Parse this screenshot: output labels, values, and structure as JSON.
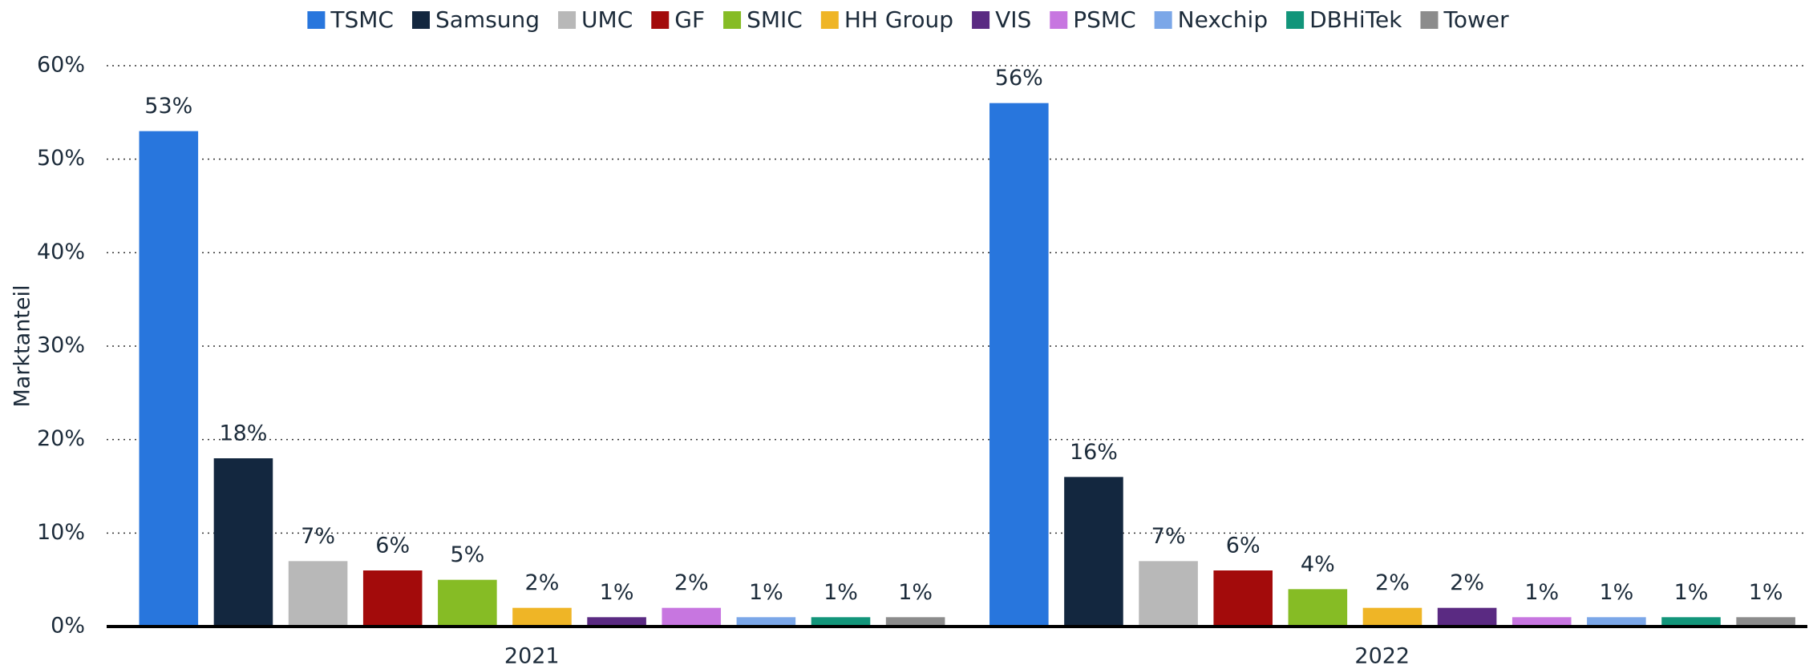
{
  "chart_data": {
    "type": "bar",
    "y_label": "Marktanteil",
    "categories": [
      "2021",
      "2022"
    ],
    "series": [
      {
        "name": "TSMC",
        "color": "#2876dd",
        "values": [
          53,
          56
        ],
        "value_labels": [
          "53%",
          "56%"
        ]
      },
      {
        "name": "Samsung",
        "color": "#13273f",
        "values": [
          18,
          16
        ],
        "value_labels": [
          "18%",
          "16%"
        ]
      },
      {
        "name": "UMC",
        "color": "#b8b8b8",
        "values": [
          7,
          7
        ],
        "value_labels": [
          "7%",
          "7%"
        ]
      },
      {
        "name": "GF",
        "color": "#a30b0b",
        "values": [
          6,
          6
        ],
        "value_labels": [
          "6%",
          "6%"
        ]
      },
      {
        "name": "SMIC",
        "color": "#86bc25",
        "values": [
          5,
          4
        ],
        "value_labels": [
          "5%",
          "4%"
        ]
      },
      {
        "name": "HH Group",
        "color": "#efb526",
        "values": [
          2,
          2
        ],
        "value_labels": [
          "2%",
          "2%"
        ]
      },
      {
        "name": "VIS",
        "color": "#5a2a82",
        "values": [
          1,
          2
        ],
        "value_labels": [
          "1%",
          "2%"
        ]
      },
      {
        "name": "PSMC",
        "color": "#c776e0",
        "values": [
          2,
          1
        ],
        "value_labels": [
          "2%",
          "1%"
        ]
      },
      {
        "name": "Nexchip",
        "color": "#7ba7e8",
        "values": [
          1,
          1
        ],
        "value_labels": [
          "1%",
          "1%"
        ]
      },
      {
        "name": "DBHiTek",
        "color": "#12957a",
        "values": [
          1,
          1
        ],
        "value_labels": [
          "1%",
          "1%"
        ]
      },
      {
        "name": "Tower",
        "color": "#8c8c8c",
        "values": [
          1,
          1
        ],
        "value_labels": [
          "1%",
          "1%"
        ]
      }
    ],
    "ylim": [
      0,
      60
    ],
    "yticks": [
      {
        "value": 0,
        "label": "0%"
      },
      {
        "value": 10,
        "label": "10%"
      },
      {
        "value": 20,
        "label": "20%"
      },
      {
        "value": 30,
        "label": "30%"
      },
      {
        "value": 40,
        "label": "40%"
      },
      {
        "value": 50,
        "label": "50%"
      },
      {
        "value": 60,
        "label": "60%"
      }
    ],
    "grid": true,
    "legend": "top"
  }
}
